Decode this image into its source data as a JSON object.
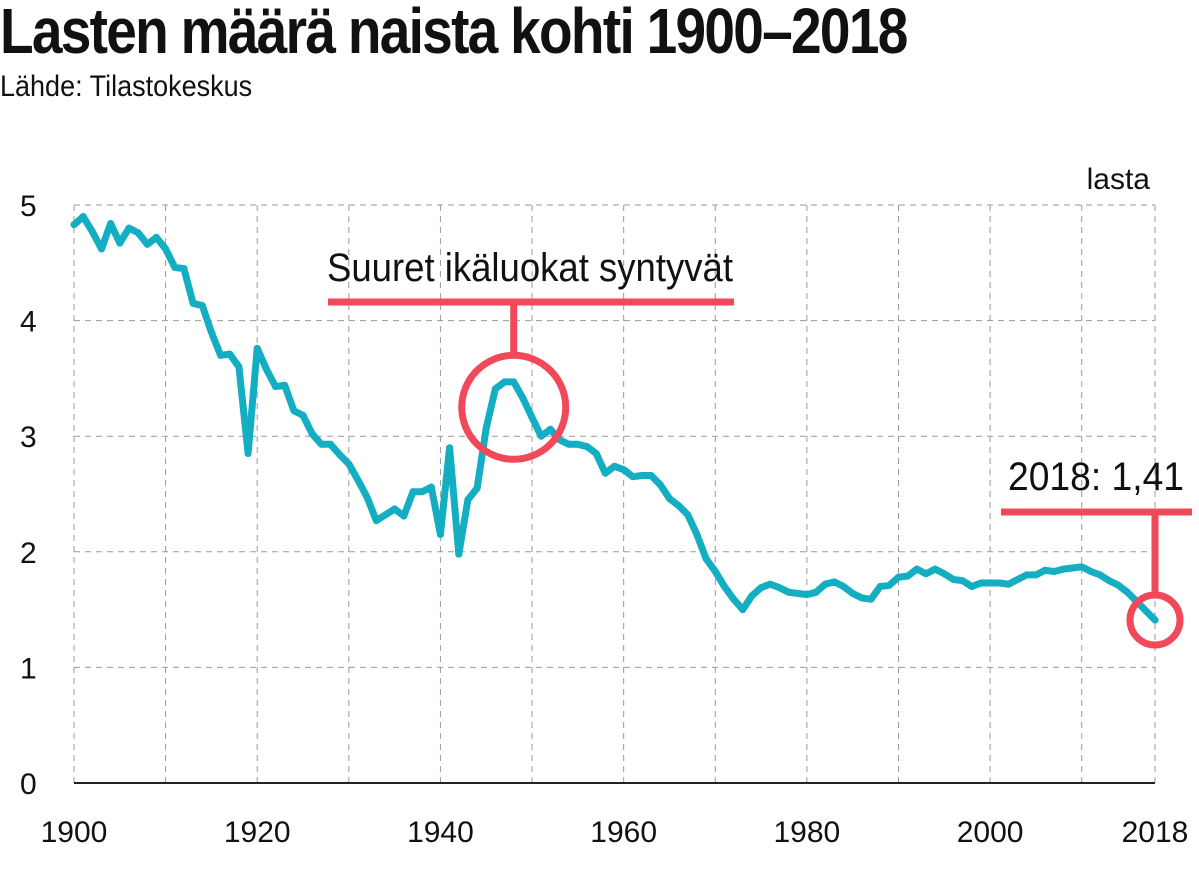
{
  "header": {
    "title": "Lasten määrä naista kohti 1900–2018",
    "source": "Lähde: Tilastokeskus"
  },
  "colors": {
    "line": "#14aec3",
    "highlight": "#f2495a",
    "grid": "#9a9a9a",
    "text": "#111111"
  },
  "chart_data": {
    "type": "line",
    "title": "Lasten määrä naista kohti 1900–2018",
    "ylabel": "lasta",
    "xlabel": "",
    "xlim": [
      1900,
      2018
    ],
    "ylim": [
      0,
      5
    ],
    "x_ticks": [
      1900,
      1920,
      1940,
      1960,
      1980,
      2000,
      2018
    ],
    "y_ticks": [
      0,
      1,
      2,
      3,
      4,
      5
    ],
    "grid": true,
    "series": [
      {
        "name": "Lasten määrä naista kohti",
        "x": [
          1900,
          1901,
          1902,
          1903,
          1904,
          1905,
          1906,
          1907,
          1908,
          1909,
          1910,
          1911,
          1912,
          1913,
          1914,
          1915,
          1916,
          1917,
          1918,
          1919,
          1920,
          1921,
          1922,
          1923,
          1924,
          1925,
          1926,
          1927,
          1928,
          1929,
          1930,
          1931,
          1932,
          1933,
          1934,
          1935,
          1936,
          1937,
          1938,
          1939,
          1940,
          1941,
          1942,
          1943,
          1944,
          1945,
          1946,
          1947,
          1948,
          1949,
          1950,
          1951,
          1952,
          1953,
          1954,
          1955,
          1956,
          1957,
          1958,
          1959,
          1960,
          1961,
          1962,
          1963,
          1964,
          1965,
          1966,
          1967,
          1968,
          1969,
          1970,
          1971,
          1972,
          1973,
          1974,
          1975,
          1976,
          1977,
          1978,
          1979,
          1980,
          1981,
          1982,
          1983,
          1984,
          1985,
          1986,
          1987,
          1988,
          1989,
          1990,
          1991,
          1992,
          1993,
          1994,
          1995,
          1996,
          1997,
          1998,
          1999,
          2000,
          2001,
          2002,
          2003,
          2004,
          2005,
          2006,
          2007,
          2008,
          2009,
          2010,
          2011,
          2012,
          2013,
          2014,
          2015,
          2016,
          2017,
          2018
        ],
        "values": [
          4.83,
          4.9,
          4.77,
          4.62,
          4.84,
          4.67,
          4.8,
          4.76,
          4.66,
          4.72,
          4.62,
          4.46,
          4.45,
          4.15,
          4.13,
          3.9,
          3.7,
          3.71,
          3.6,
          2.85,
          3.76,
          3.58,
          3.43,
          3.44,
          3.22,
          3.18,
          3.02,
          2.93,
          2.93,
          2.84,
          2.76,
          2.62,
          2.47,
          2.27,
          2.32,
          2.37,
          2.31,
          2.52,
          2.52,
          2.56,
          2.15,
          2.9,
          1.98,
          2.45,
          2.55,
          3.07,
          3.41,
          3.47,
          3.47,
          3.33,
          3.16,
          3.0,
          3.06,
          2.97,
          2.93,
          2.93,
          2.91,
          2.85,
          2.68,
          2.74,
          2.71,
          2.65,
          2.66,
          2.66,
          2.58,
          2.46,
          2.4,
          2.32,
          2.15,
          1.94,
          1.83,
          1.7,
          1.59,
          1.5,
          1.62,
          1.69,
          1.72,
          1.69,
          1.65,
          1.64,
          1.63,
          1.65,
          1.72,
          1.74,
          1.7,
          1.64,
          1.6,
          1.59,
          1.7,
          1.71,
          1.78,
          1.79,
          1.85,
          1.81,
          1.85,
          1.81,
          1.76,
          1.75,
          1.7,
          1.73,
          1.73,
          1.73,
          1.72,
          1.76,
          1.8,
          1.8,
          1.84,
          1.83,
          1.85,
          1.86,
          1.87,
          1.83,
          1.8,
          1.75,
          1.71,
          1.65,
          1.57,
          1.49,
          1.41
        ]
      }
    ],
    "annotations": [
      {
        "label": "Suuret ikäluokat syntyvät",
        "x": 1948,
        "y": 3.25
      },
      {
        "label": "2018: 1,41",
        "x": 2018,
        "y": 1.41
      }
    ]
  }
}
